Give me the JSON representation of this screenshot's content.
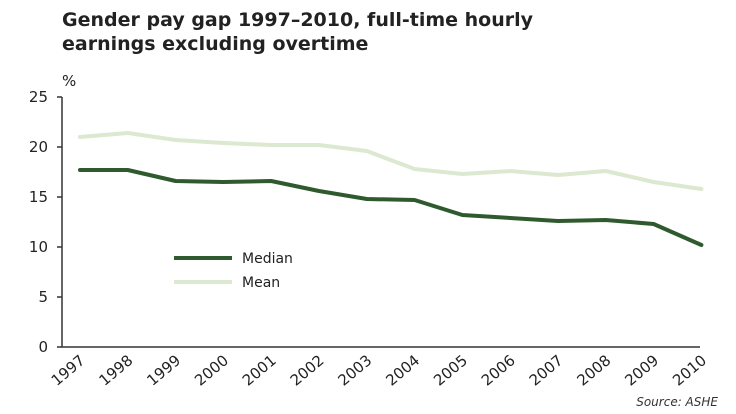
{
  "chart_data": {
    "type": "line",
    "title": "Gender pay gap 1997–2010, full-time hourly earnings excluding overtime",
    "title_lines": [
      "Gender pay gap 1997–2010, full-time hourly",
      "earnings excluding overtime"
    ],
    "ylabel": "%",
    "xlabel": "",
    "ylim": [
      0,
      25
    ],
    "yticks": [
      0,
      5,
      10,
      15,
      20,
      25
    ],
    "x": [
      "1997",
      "1998",
      "1999",
      "2000",
      "2001",
      "2002",
      "2003",
      "2004",
      "2005",
      "2006",
      "2007",
      "2008",
      "2009",
      "2010"
    ],
    "series": [
      {
        "name": "Median",
        "color": "#2e5a2e",
        "values": [
          17.7,
          17.7,
          16.6,
          16.5,
          16.6,
          15.6,
          14.8,
          14.7,
          13.2,
          12.9,
          12.6,
          12.7,
          12.3,
          10.2
        ]
      },
      {
        "name": "Mean",
        "color": "#dce8cf",
        "values": [
          21.0,
          21.4,
          20.7,
          20.4,
          20.2,
          20.2,
          19.6,
          17.8,
          17.3,
          17.6,
          17.2,
          17.6,
          16.5,
          15.8
        ]
      }
    ],
    "legend_position": "center-left",
    "grid": false,
    "source": "Source: ASHE"
  }
}
